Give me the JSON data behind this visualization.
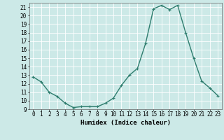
{
  "x": [
    0,
    1,
    2,
    3,
    4,
    5,
    6,
    7,
    8,
    9,
    10,
    11,
    12,
    13,
    14,
    15,
    16,
    17,
    18,
    19,
    20,
    21,
    22,
    23
  ],
  "y": [
    12.8,
    12.2,
    11.0,
    10.5,
    9.7,
    9.2,
    9.3,
    9.3,
    9.3,
    9.7,
    10.3,
    11.8,
    13.0,
    13.8,
    16.7,
    20.8,
    21.2,
    20.7,
    21.2,
    18.0,
    15.0,
    12.3,
    11.5,
    10.6
  ],
  "line_color": "#2e7d6e",
  "marker": "+",
  "marker_size": 3,
  "bg_color": "#cce9e7",
  "grid_color": "#ffffff",
  "xlabel": "Humidex (Indice chaleur)",
  "xlim": [
    -0.5,
    23.5
  ],
  "ylim": [
    9,
    21.5
  ],
  "yticks": [
    9,
    10,
    11,
    12,
    13,
    14,
    15,
    16,
    17,
    18,
    19,
    20,
    21
  ],
  "xticks": [
    0,
    1,
    2,
    3,
    4,
    5,
    6,
    7,
    8,
    9,
    10,
    11,
    12,
    13,
    14,
    15,
    16,
    17,
    18,
    19,
    20,
    21,
    22,
    23
  ],
  "xlabel_fontsize": 6.5,
  "tick_fontsize": 5.5,
  "linewidth": 1.0
}
